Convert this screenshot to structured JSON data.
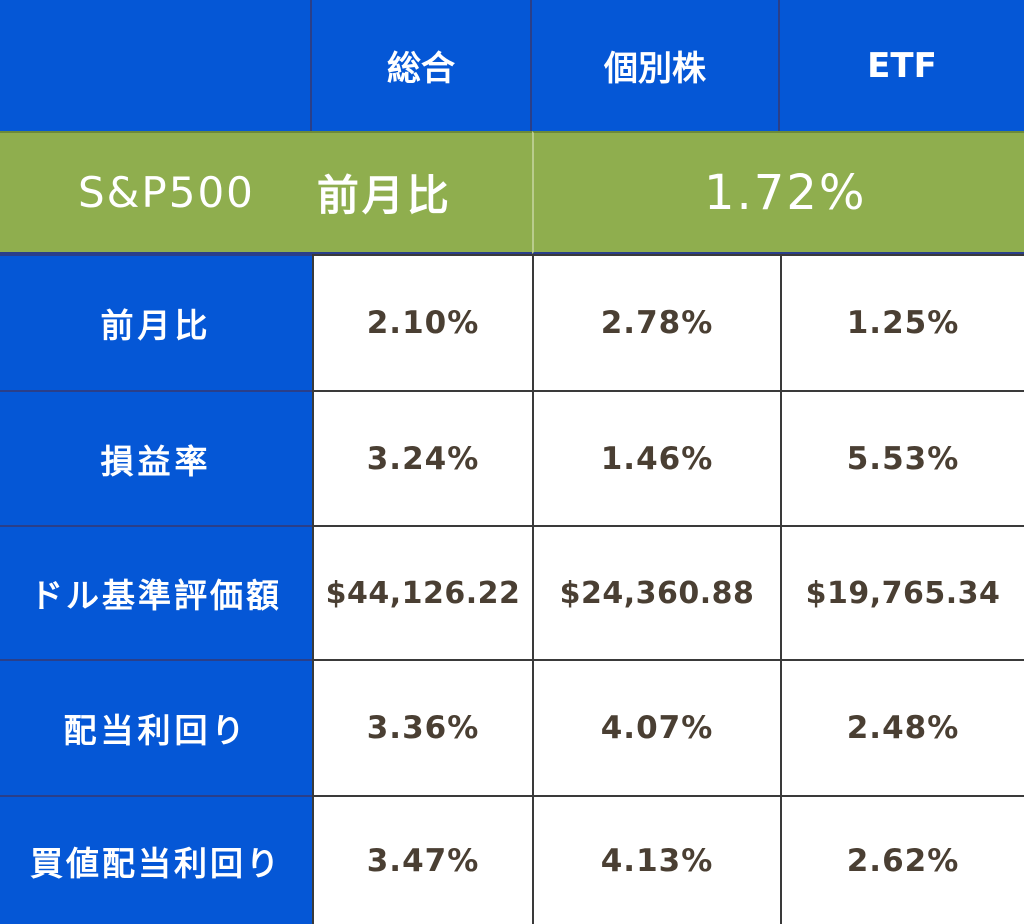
{
  "header": {
    "corner": "",
    "columns": [
      "総合",
      "個別株",
      "ETF"
    ]
  },
  "benchmark": {
    "name": "S&P500",
    "label": "前月比",
    "value": "1.72%"
  },
  "rows": [
    {
      "label": "前月比",
      "values": [
        "2.10%",
        "2.78%",
        "1.25%"
      ]
    },
    {
      "label": "損益率",
      "values": [
        "3.24%",
        "1.46%",
        "5.53%"
      ]
    },
    {
      "label": "ドル基準評価額",
      "values": [
        "$44,126.22",
        "$24,360.88",
        "$19,765.34"
      ]
    },
    {
      "label": "配当利回り",
      "values": [
        "3.36%",
        "4.07%",
        "2.48%"
      ]
    },
    {
      "label": "買値配当利回り",
      "values": [
        "3.47%",
        "4.13%",
        "2.62%"
      ]
    }
  ],
  "colors": {
    "header_blue": "#0557d6",
    "benchmark_green": "#8fae4e",
    "value_text": "#4a3f33"
  }
}
